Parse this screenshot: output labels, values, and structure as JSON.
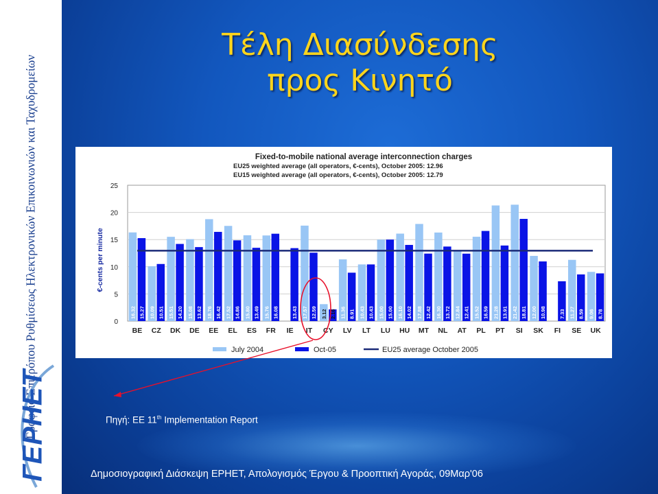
{
  "sidebar": {
    "vertical_text": "Γραφείο Επιτρόπου Ρυθμίσεως Ηλεκτρονικών Επικοινωνιών και Ταχυδρομείων",
    "logo_text": "ΓΕΡΗΕΤ"
  },
  "slide": {
    "title_line1": "Τέλη Διασύνδεσης",
    "title_line2": "προς Κινητό",
    "source_prefix": "Πηγή: ΕΕ 11",
    "source_sup": "th",
    "source_suffix": " Implementation Report",
    "footer": "Δημοσιογραφική Διάσκεψη ΕΡΗΕΤ, Απολογισμός Έργου & Προοπτική Αγοράς, 09Μαρ'06"
  },
  "colors": {
    "title": "#ffd51c",
    "july2004": "#99c6f5",
    "oct05": "#0a14e6",
    "eu25_line": "#1a2a78",
    "highlight": "#e8102a"
  },
  "chart_data": {
    "type": "bar",
    "title": "Fixed-to-mobile national average interconnection charges",
    "subtitle_1": "EU25  weighted average (all operators, €-cents), October 2005: 12.96",
    "subtitle_2": "EU15  weighted average (all operators, €-cents), October 2005: 12.79",
    "ylabel": "€-cents per minute",
    "ylim": [
      0,
      25
    ],
    "yticks": [
      0,
      5,
      10,
      15,
      20,
      25
    ],
    "categories": [
      "BE",
      "CZ",
      "DK",
      "DE",
      "EE",
      "EL",
      "ES",
      "FR",
      "IE",
      "IT",
      "CY",
      "LV",
      "LT",
      "LU",
      "HU",
      "MT",
      "NL",
      "AT",
      "PL",
      "PT",
      "SI",
      "SK",
      "FI",
      "SE",
      "UK"
    ],
    "series": [
      {
        "name": "July 2004",
        "values": [
          16.32,
          10.09,
          15.51,
          15.08,
          18.76,
          17.52,
          15.8,
          15.76,
          null,
          17.57,
          3.12,
          11.36,
          10.43,
          15.0,
          16.1,
          17.88,
          16.3,
          12.84,
          15.52,
          21.28,
          21.42,
          12.0,
          null,
          11.27,
          9.06
        ]
      },
      {
        "name": "Oct-05",
        "values": [
          15.27,
          10.51,
          14.2,
          13.62,
          16.42,
          14.86,
          13.49,
          16.08,
          13.43,
          12.59,
          2.16,
          8.91,
          10.43,
          15.0,
          14.02,
          12.42,
          13.72,
          12.41,
          16.59,
          13.91,
          18.81,
          10.98,
          7.33,
          8.59,
          8.78
        ]
      }
    ],
    "reference_line": {
      "name": "EU25 average October 2005",
      "value": 12.96
    },
    "value_labels": [
      [
        "16.32",
        "15.27"
      ],
      [
        "10.09",
        "10.51"
      ],
      [
        "15.51",
        "14.20"
      ],
      [
        "15.08",
        "13.62"
      ],
      [
        "18.76",
        "16.42"
      ],
      [
        "17.52",
        "14.86"
      ],
      [
        "15.80",
        "13.49"
      ],
      [
        "15.76",
        "16.08"
      ],
      [
        "",
        "13.43"
      ],
      [
        "17.57",
        "12.59"
      ],
      [
        "3.12",
        "2.16"
      ],
      [
        "11.36",
        "8.91"
      ],
      [
        "10.43",
        "10.43"
      ],
      [
        "15.00",
        "15.00"
      ],
      [
        "16.10",
        "14.02"
      ],
      [
        "17.88",
        "12.42"
      ],
      [
        "16.30",
        "13.72"
      ],
      [
        "12.84",
        "12.41"
      ],
      [
        "15.52",
        "16.59"
      ],
      [
        "21.28",
        "13.91"
      ],
      [
        "21.42",
        "18.81"
      ],
      [
        "12.00",
        "10.98"
      ],
      [
        "",
        "7.33"
      ],
      [
        "11.27",
        "8.59"
      ],
      [
        "9.06",
        "8.78"
      ]
    ],
    "highlighted_category": "CY",
    "legend_position": "bottom",
    "grid": true
  }
}
